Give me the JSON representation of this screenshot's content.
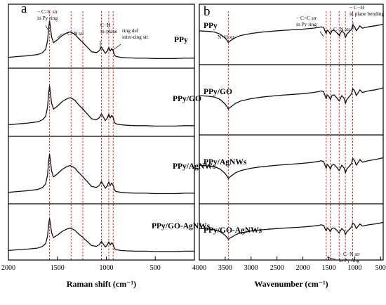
{
  "chart_data": [
    {
      "type": "line",
      "panel": "a",
      "xlabel": "Raman shift (cm⁻¹)",
      "ylabel": "",
      "xlim": [
        2000,
        100
      ],
      "x_reversed": true,
      "xticks": [
        "2000",
        "1500",
        "1000",
        "500"
      ],
      "stack_labels": [
        "PPy",
        "PPy/GO",
        "PPy/AgNWs",
        "PPy/GO-AgNWs"
      ],
      "reference_lines": [
        1580,
        1360,
        1240,
        1050,
        975,
        930
      ],
      "annotations": [
        {
          "lines": [
            "− C=C str",
            "in Py ring"
          ],
          "x": 1580
        },
        {
          "lines": [
            "− C−N str"
          ],
          "x": 1360
        },
        {
          "lines": [
            "C−H",
            "in-plane"
          ],
          "x": 1050
        },
        {
          "lines": [
            "ring def",
            "inter-ring str"
          ],
          "x": 950
        }
      ],
      "series": [
        {
          "name": "PPy",
          "x": [
            2000,
            1900,
            1800,
            1700,
            1650,
            1620,
            1600,
            1590,
            1580,
            1570,
            1560,
            1540,
            1500,
            1450,
            1400,
            1370,
            1350,
            1320,
            1300,
            1280,
            1260,
            1240,
            1220,
            1200,
            1150,
            1100,
            1070,
            1050,
            1030,
            1010,
            990,
            975,
            960,
            945,
            930,
            915,
            900,
            850,
            800,
            700,
            600,
            500,
            400,
            300,
            200,
            100
          ],
          "y": [
            0.08,
            0.1,
            0.12,
            0.15,
            0.2,
            0.28,
            0.5,
            0.8,
            1.0,
            0.82,
            0.6,
            0.45,
            0.52,
            0.63,
            0.7,
            0.72,
            0.7,
            0.66,
            0.6,
            0.55,
            0.5,
            0.46,
            0.4,
            0.35,
            0.22,
            0.2,
            0.25,
            0.34,
            0.26,
            0.18,
            0.24,
            0.33,
            0.24,
            0.3,
            0.25,
            0.13,
            0.1,
            0.08,
            0.07,
            0.06,
            0.06,
            0.05,
            0.05,
            0.05,
            0.06,
            0.06
          ]
        },
        {
          "name": "PPy/GO",
          "x": [
            2000,
            1900,
            1800,
            1700,
            1650,
            1620,
            1600,
            1590,
            1580,
            1570,
            1560,
            1540,
            1500,
            1450,
            1400,
            1370,
            1350,
            1320,
            1300,
            1280,
            1260,
            1240,
            1220,
            1200,
            1150,
            1100,
            1070,
            1050,
            1030,
            1010,
            990,
            975,
            960,
            945,
            930,
            915,
            900,
            850,
            800,
            700,
            600,
            500,
            400,
            300,
            200,
            100
          ],
          "y": [
            0.08,
            0.1,
            0.12,
            0.15,
            0.2,
            0.28,
            0.5,
            0.8,
            1.0,
            0.82,
            0.6,
            0.45,
            0.52,
            0.63,
            0.7,
            0.72,
            0.7,
            0.66,
            0.6,
            0.55,
            0.5,
            0.46,
            0.4,
            0.35,
            0.22,
            0.2,
            0.25,
            0.34,
            0.26,
            0.18,
            0.24,
            0.33,
            0.24,
            0.3,
            0.25,
            0.13,
            0.1,
            0.08,
            0.07,
            0.06,
            0.06,
            0.05,
            0.05,
            0.05,
            0.06,
            0.06
          ]
        },
        {
          "name": "PPy/AgNWs",
          "x": [
            2000,
            1900,
            1800,
            1700,
            1650,
            1620,
            1600,
            1590,
            1580,
            1570,
            1560,
            1540,
            1500,
            1450,
            1400,
            1370,
            1350,
            1320,
            1300,
            1280,
            1260,
            1240,
            1220,
            1200,
            1150,
            1100,
            1070,
            1050,
            1030,
            1010,
            990,
            975,
            960,
            945,
            930,
            915,
            900,
            850,
            800,
            700,
            600,
            500,
            400,
            300,
            200,
            100
          ],
          "y": [
            0.08,
            0.1,
            0.12,
            0.15,
            0.2,
            0.28,
            0.5,
            0.8,
            1.0,
            0.82,
            0.6,
            0.45,
            0.52,
            0.63,
            0.7,
            0.72,
            0.7,
            0.66,
            0.6,
            0.55,
            0.5,
            0.46,
            0.4,
            0.35,
            0.22,
            0.2,
            0.25,
            0.34,
            0.26,
            0.18,
            0.24,
            0.33,
            0.24,
            0.3,
            0.25,
            0.13,
            0.1,
            0.08,
            0.07,
            0.06,
            0.06,
            0.05,
            0.05,
            0.05,
            0.06,
            0.06
          ]
        },
        {
          "name": "PPy/GO-AgNWs",
          "x": [
            2000,
            1900,
            1800,
            1700,
            1650,
            1620,
            1600,
            1590,
            1580,
            1570,
            1560,
            1540,
            1500,
            1450,
            1400,
            1370,
            1350,
            1320,
            1300,
            1280,
            1260,
            1240,
            1220,
            1200,
            1150,
            1100,
            1070,
            1050,
            1030,
            1010,
            990,
            975,
            960,
            945,
            930,
            915,
            900,
            850,
            800,
            700,
            600,
            500,
            400,
            300,
            200,
            100
          ],
          "y": [
            0.08,
            0.1,
            0.12,
            0.15,
            0.2,
            0.28,
            0.5,
            0.8,
            1.0,
            0.82,
            0.6,
            0.45,
            0.52,
            0.63,
            0.7,
            0.72,
            0.7,
            0.66,
            0.6,
            0.55,
            0.5,
            0.46,
            0.4,
            0.35,
            0.22,
            0.2,
            0.25,
            0.34,
            0.26,
            0.18,
            0.24,
            0.33,
            0.24,
            0.3,
            0.25,
            0.13,
            0.1,
            0.08,
            0.07,
            0.06,
            0.06,
            0.05,
            0.05,
            0.05,
            0.06,
            0.06
          ]
        }
      ]
    },
    {
      "type": "line",
      "panel": "b",
      "xlabel": "Wavenumber (cm⁻¹)",
      "ylabel": "",
      "xlim": [
        4000,
        450
      ],
      "x_reversed": true,
      "xticks": [
        "4000",
        "3500",
        "3000",
        "2500",
        "2000",
        "1500",
        "1000",
        "500"
      ],
      "stack_labels": [
        "PPy",
        "PPy/GO",
        "PPy/AgNWs",
        "PPy/GO-AgNWs"
      ],
      "reference_lines": [
        3440,
        1550,
        1470,
        1300,
        1180,
        1040
      ],
      "annotations": [
        {
          "lines": [
            "N−H str"
          ],
          "x": 3440
        },
        {
          "lines": [
            "− C=C str",
            "in Py ring"
          ],
          "x": 1550
        },
        {
          "lines": [
            "− C−N str"
          ],
          "x": 1300
        },
        {
          "lines": [
            "− C−H",
            "in plane bending"
          ],
          "x": 1040
        },
        {
          "lines": [
            "− C−N str",
            "in Py ring"
          ],
          "x": 1470
        }
      ],
      "series": [
        {
          "name": "PPy",
          "x": [
            4000,
            3900,
            3800,
            3700,
            3600,
            3500,
            3450,
            3440,
            3400,
            3300,
            3200,
            3000,
            2800,
            2500,
            2200,
            2000,
            1800,
            1700,
            1650,
            1600,
            1560,
            1550,
            1530,
            1500,
            1470,
            1440,
            1400,
            1350,
            1300,
            1250,
            1200,
            1180,
            1150,
            1100,
            1060,
            1040,
            1000,
            970,
            920,
            900,
            850,
            800,
            700,
            600,
            500,
            450
          ],
          "y": [
            0.8,
            0.79,
            0.78,
            0.76,
            0.7,
            0.58,
            0.48,
            0.45,
            0.5,
            0.6,
            0.66,
            0.72,
            0.76,
            0.8,
            0.83,
            0.85,
            0.88,
            0.9,
            0.92,
            0.9,
            0.75,
            0.72,
            0.82,
            0.78,
            0.7,
            0.8,
            0.82,
            0.75,
            0.66,
            0.8,
            0.72,
            0.6,
            0.7,
            0.78,
            0.85,
            0.98,
            0.92,
            0.8,
            0.9,
            0.95,
            0.88,
            0.9,
            0.93,
            0.95,
            0.98,
            1.0
          ]
        },
        {
          "name": "PPy/GO",
          "x": [
            4000,
            3900,
            3800,
            3700,
            3600,
            3500,
            3450,
            3440,
            3400,
            3300,
            3200,
            3000,
            2800,
            2500,
            2200,
            2000,
            1800,
            1700,
            1650,
            1600,
            1560,
            1550,
            1530,
            1500,
            1470,
            1440,
            1400,
            1350,
            1300,
            1250,
            1200,
            1180,
            1150,
            1100,
            1060,
            1040,
            1000,
            970,
            920,
            900,
            850,
            800,
            700,
            600,
            500,
            450
          ],
          "y": [
            0.8,
            0.79,
            0.78,
            0.76,
            0.7,
            0.58,
            0.48,
            0.45,
            0.5,
            0.6,
            0.66,
            0.72,
            0.76,
            0.8,
            0.83,
            0.85,
            0.88,
            0.9,
            0.92,
            0.9,
            0.75,
            0.72,
            0.82,
            0.78,
            0.7,
            0.8,
            0.82,
            0.75,
            0.66,
            0.8,
            0.72,
            0.6,
            0.7,
            0.78,
            0.85,
            0.98,
            0.92,
            0.8,
            0.9,
            0.95,
            0.88,
            0.9,
            0.93,
            0.95,
            0.98,
            1.0
          ]
        },
        {
          "name": "PPy/AgNWs",
          "x": [
            4000,
            3900,
            3800,
            3700,
            3600,
            3500,
            3450,
            3440,
            3400,
            3300,
            3200,
            3000,
            2800,
            2500,
            2200,
            2000,
            1800,
            1700,
            1650,
            1600,
            1560,
            1550,
            1530,
            1500,
            1470,
            1440,
            1400,
            1350,
            1300,
            1250,
            1200,
            1180,
            1150,
            1100,
            1060,
            1040,
            1000,
            970,
            920,
            900,
            850,
            800,
            700,
            600,
            500,
            450
          ],
          "y": [
            0.8,
            0.79,
            0.78,
            0.76,
            0.7,
            0.58,
            0.48,
            0.45,
            0.5,
            0.6,
            0.66,
            0.72,
            0.76,
            0.8,
            0.83,
            0.85,
            0.88,
            0.9,
            0.92,
            0.9,
            0.75,
            0.72,
            0.82,
            0.78,
            0.7,
            0.8,
            0.82,
            0.75,
            0.66,
            0.8,
            0.72,
            0.6,
            0.7,
            0.78,
            0.85,
            0.98,
            0.92,
            0.8,
            0.9,
            0.95,
            0.88,
            0.9,
            0.93,
            0.95,
            0.98,
            1.0
          ]
        },
        {
          "name": "PPy/GO-AgNWs",
          "x": [
            4000,
            3900,
            3800,
            3700,
            3600,
            3500,
            3450,
            3440,
            3400,
            3300,
            3200,
            3000,
            2800,
            2500,
            2200,
            2000,
            1800,
            1700,
            1650,
            1600,
            1560,
            1550,
            1530,
            1500,
            1470,
            1440,
            1400,
            1350,
            1300,
            1250,
            1200,
            1180,
            1150,
            1100,
            1060,
            1040,
            1000,
            970,
            920,
            900,
            850,
            800,
            700,
            600,
            500,
            450
          ],
          "y": [
            0.8,
            0.79,
            0.78,
            0.76,
            0.7,
            0.58,
            0.48,
            0.45,
            0.5,
            0.6,
            0.66,
            0.72,
            0.76,
            0.8,
            0.83,
            0.85,
            0.88,
            0.9,
            0.92,
            0.9,
            0.75,
            0.72,
            0.82,
            0.78,
            0.7,
            0.8,
            0.82,
            0.75,
            0.66,
            0.8,
            0.72,
            0.6,
            0.7,
            0.78,
            0.85,
            0.98,
            0.92,
            0.8,
            0.9,
            0.95,
            0.88,
            0.9,
            0.93,
            0.95,
            0.98,
            1.0
          ]
        }
      ]
    }
  ]
}
